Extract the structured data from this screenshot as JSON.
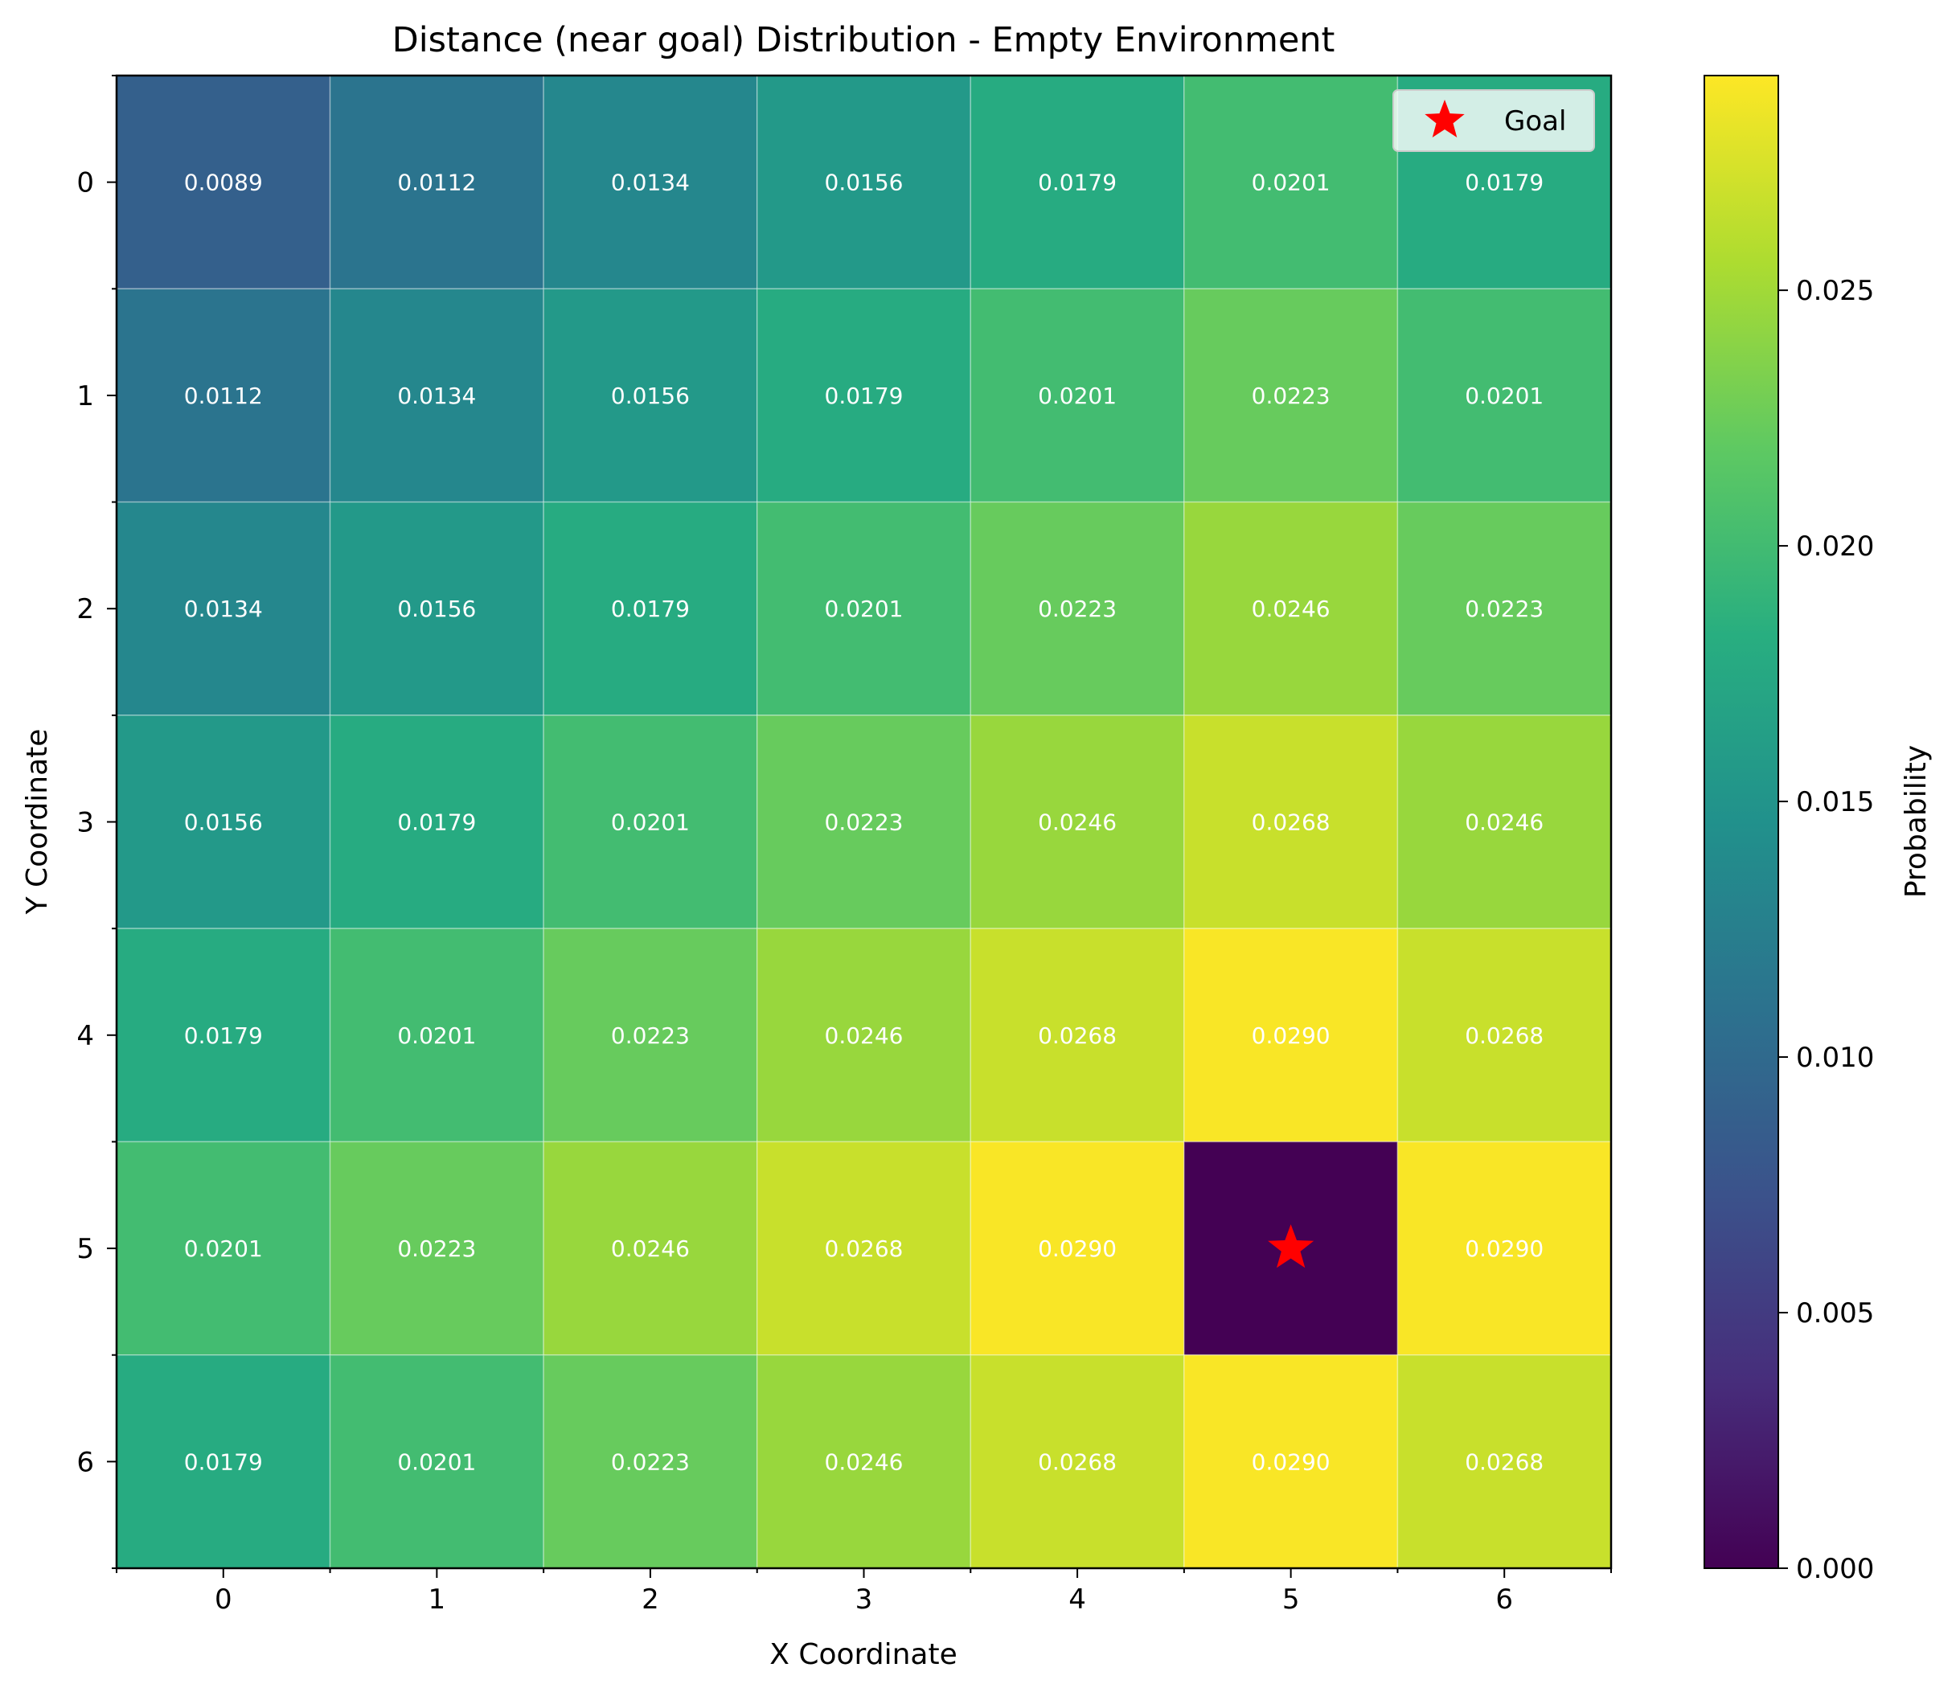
{
  "chart_data": {
    "type": "heatmap",
    "title": "Distance (near goal) Distribution - Empty Environment",
    "xlabel": "X Coordinate",
    "ylabel": "Y Coordinate",
    "x_ticks": [
      "0",
      "1",
      "2",
      "3",
      "4",
      "5",
      "6"
    ],
    "y_ticks": [
      "0",
      "1",
      "2",
      "3",
      "4",
      "5",
      "6"
    ],
    "values": [
      [
        0.0089,
        0.0112,
        0.0134,
        0.0156,
        0.0179,
        0.0201,
        0.0179
      ],
      [
        0.0112,
        0.0134,
        0.0156,
        0.0179,
        0.0201,
        0.0223,
        0.0201
      ],
      [
        0.0134,
        0.0156,
        0.0179,
        0.0201,
        0.0223,
        0.0246,
        0.0223
      ],
      [
        0.0156,
        0.0179,
        0.0201,
        0.0223,
        0.0246,
        0.0268,
        0.0246
      ],
      [
        0.0179,
        0.0201,
        0.0223,
        0.0246,
        0.0268,
        0.029,
        0.0268
      ],
      [
        0.0201,
        0.0223,
        0.0246,
        0.0268,
        0.029,
        0.0,
        0.029
      ],
      [
        0.0179,
        0.0201,
        0.0223,
        0.0246,
        0.0268,
        0.029,
        0.0268
      ]
    ],
    "cell_labels": [
      [
        "0.0089",
        "0.0112",
        "0.0134",
        "0.0156",
        "0.0179",
        "0.0201",
        "0.0179"
      ],
      [
        "0.0112",
        "0.0134",
        "0.0156",
        "0.0179",
        "0.0201",
        "0.0223",
        "0.0201"
      ],
      [
        "0.0134",
        "0.0156",
        "0.0179",
        "0.0201",
        "0.0223",
        "0.0246",
        "0.0223"
      ],
      [
        "0.0156",
        "0.0179",
        "0.0201",
        "0.0223",
        "0.0246",
        "0.0268",
        "0.0246"
      ],
      [
        "0.0179",
        "0.0201",
        "0.0223",
        "0.0246",
        "0.0268",
        "0.0290",
        "0.0268"
      ],
      [
        "0.0201",
        "0.0223",
        "0.0246",
        "0.0268",
        "0.0290",
        "",
        "0.0290"
      ],
      [
        "0.0179",
        "0.0201",
        "0.0223",
        "0.0246",
        "0.0268",
        "0.0290",
        "0.0268"
      ]
    ],
    "goal": {
      "x": 5,
      "y": 5,
      "label": "Goal",
      "color": "#ff0000",
      "marker": "star"
    },
    "colormap": "viridis",
    "colorbar": {
      "label": "Probability",
      "min": 0.0,
      "max": 0.0292,
      "ticks": [
        "0.000",
        "0.005",
        "0.010",
        "0.015",
        "0.020",
        "0.025"
      ]
    },
    "legend_position": "top-right",
    "grid": true
  }
}
